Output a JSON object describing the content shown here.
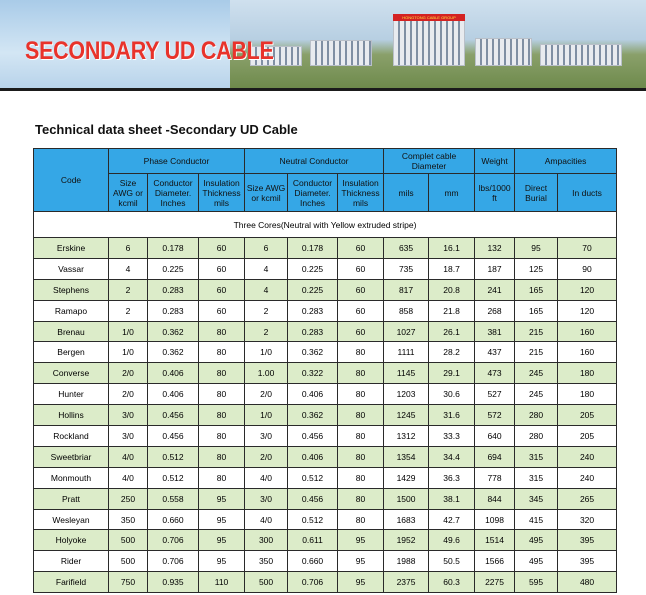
{
  "banner": {
    "title": "SECONDARY UD CABLE",
    "sign_text": "HONGTONG CABLE GROUP"
  },
  "document": {
    "title": "Technical data sheet -Secondary UD Cable"
  },
  "table": {
    "headers": {
      "code": "Code",
      "phase_conductor": "Phase Conductor",
      "neutral_conductor": "Neutral Conductor",
      "cable_diameter": "Complet cable Diameter",
      "weight": "Weight",
      "ampacities": "Ampacities",
      "size": "Size AWG or kcmil",
      "conductor_diameter": "Conductor Diameter. Inches",
      "insulation_thickness": "Insulation Thickness mils",
      "mils": "mils",
      "mm": "mm",
      "weight_unit": "lbs/1000 ft",
      "direct_burial": "Direct Burial",
      "in_ducts": "In ducts"
    },
    "section_label": "Three Cores(Neutral with Yellow extruded stripe)",
    "rows": [
      [
        "Erskine",
        "6",
        "0.178",
        "60",
        "6",
        "0.178",
        "60",
        "635",
        "16.1",
        "132",
        "95",
        "70"
      ],
      [
        "Vassar",
        "4",
        "0.225",
        "60",
        "4",
        "0.225",
        "60",
        "735",
        "18.7",
        "187",
        "125",
        "90"
      ],
      [
        "Stephens",
        "2",
        "0.283",
        "60",
        "4",
        "0.225",
        "60",
        "817",
        "20.8",
        "241",
        "165",
        "120"
      ],
      [
        "Ramapo",
        "2",
        "0.283",
        "60",
        "2",
        "0.283",
        "60",
        "858",
        "21.8",
        "268",
        "165",
        "120"
      ],
      [
        "Brenau",
        "1/0",
        "0.362",
        "80",
        "2",
        "0.283",
        "60",
        "1027",
        "26.1",
        "381",
        "215",
        "160"
      ],
      [
        "Bergen",
        "1/0",
        "0.362",
        "80",
        "1/0",
        "0.362",
        "80",
        "1111",
        "28.2",
        "437",
        "215",
        "160"
      ],
      [
        "Converse",
        "2/0",
        "0.406",
        "80",
        "1.00",
        "0.322",
        "80",
        "1145",
        "29.1",
        "473",
        "245",
        "180"
      ],
      [
        "Hunter",
        "2/0",
        "0.406",
        "80",
        "2/0",
        "0.406",
        "80",
        "1203",
        "30.6",
        "527",
        "245",
        "180"
      ],
      [
        "Hollins",
        "3/0",
        "0.456",
        "80",
        "1/0",
        "0.362",
        "80",
        "1245",
        "31.6",
        "572",
        "280",
        "205"
      ],
      [
        "Rockland",
        "3/0",
        "0.456",
        "80",
        "3/0",
        "0.456",
        "80",
        "1312",
        "33.3",
        "640",
        "280",
        "205"
      ],
      [
        "Sweetbriar",
        "4/0",
        "0.512",
        "80",
        "2/0",
        "0.406",
        "80",
        "1354",
        "34.4",
        "694",
        "315",
        "240"
      ],
      [
        "Monmouth",
        "4/0",
        "0.512",
        "80",
        "4/0",
        "0.512",
        "80",
        "1429",
        "36.3",
        "778",
        "315",
        "240"
      ],
      [
        "Pratt",
        "250",
        "0.558",
        "95",
        "3/0",
        "0.456",
        "80",
        "1500",
        "38.1",
        "844",
        "345",
        "265"
      ],
      [
        "Wesleyan",
        "350",
        "0.660",
        "95",
        "4/0",
        "0.512",
        "80",
        "1683",
        "42.7",
        "1098",
        "415",
        "320"
      ],
      [
        "Holyoke",
        "500",
        "0.706",
        "95",
        "300",
        "0.611",
        "95",
        "1952",
        "49.6",
        "1514",
        "495",
        "395"
      ],
      [
        "Rider",
        "500",
        "0.706",
        "95",
        "350",
        "0.660",
        "95",
        "1988",
        "50.5",
        "1566",
        "495",
        "395"
      ],
      [
        "Farifield",
        "750",
        "0.935",
        "110",
        "500",
        "0.706",
        "95",
        "2375",
        "60.3",
        "2275",
        "595",
        "480"
      ]
    ]
  }
}
